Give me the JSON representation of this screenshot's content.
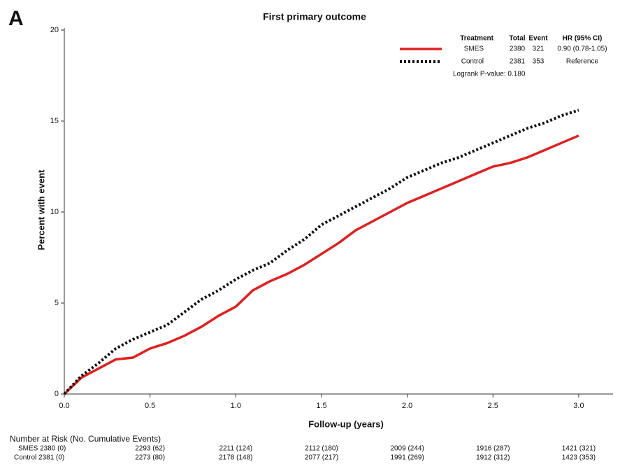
{
  "chart_data": {
    "type": "line",
    "panel_label": "A",
    "title": "First primary outcome",
    "x_label": "Follow-up (years)",
    "y_label": "Percent with event",
    "x": [
      0,
      0.1,
      0.2,
      0.3,
      0.4,
      0.5,
      0.6,
      0.7,
      0.8,
      0.9,
      1.0,
      1.1,
      1.2,
      1.3,
      1.4,
      1.5,
      1.6,
      1.7,
      1.8,
      1.9,
      2.0,
      2.1,
      2.2,
      2.3,
      2.4,
      2.5,
      2.6,
      2.7,
      2.8,
      2.9,
      3.0
    ],
    "series": [
      {
        "name": "SMES",
        "color": "#e02020",
        "dashed": false,
        "values": [
          0,
          0.9,
          1.4,
          1.9,
          2.0,
          2.5,
          2.8,
          3.2,
          3.7,
          4.3,
          4.8,
          5.7,
          6.2,
          6.6,
          7.1,
          7.7,
          8.3,
          9.0,
          9.5,
          10.0,
          10.5,
          10.9,
          11.3,
          11.7,
          12.1,
          12.5,
          12.7,
          13.0,
          13.4,
          13.8,
          14.2
        ]
      },
      {
        "name": "Control",
        "color": "#111111",
        "dashed": true,
        "values": [
          0,
          1.0,
          1.7,
          2.5,
          3.0,
          3.4,
          3.8,
          4.5,
          5.2,
          5.7,
          6.3,
          6.8,
          7.2,
          7.9,
          8.5,
          9.3,
          9.8,
          10.3,
          10.8,
          11.3,
          11.9,
          12.3,
          12.7,
          13.0,
          13.4,
          13.8,
          14.2,
          14.6,
          14.9,
          15.3,
          15.6
        ]
      }
    ],
    "xlim": [
      0,
      3.2
    ],
    "xticks": [
      {
        "value": 0,
        "label": "0.0"
      },
      0.5,
      {
        "value": 1,
        "label": "1.0"
      },
      1.5,
      {
        "value": 2,
        "label": "2.0"
      },
      2.5,
      {
        "value": 3,
        "label": "3.0"
      }
    ],
    "ylim": [
      0,
      20
    ],
    "yticks": [
      0,
      5,
      10,
      15,
      20
    ],
    "legend_table": {
      "header": [
        "Treatment",
        "Total",
        "Event",
        "HR (95% CI)"
      ],
      "rows": [
        [
          "SMES",
          "2380",
          "321",
          "0.90 (0.78-1.05)"
        ],
        [
          "Control",
          "2381",
          "353",
          "Reference"
        ]
      ],
      "note": "Logrank P-value: 0.180"
    },
    "risk_table": {
      "title": "Number at Risk (No. Cumulative Events)",
      "rows": [
        [
          "SMES 2380 (0)",
          "2293 (62)",
          "2211 (124)",
          "2112 (180)",
          "2009 (244)",
          "1916 (287)",
          "1421 (321)"
        ],
        [
          "Control 2381 (0)",
          "2273 (80)",
          "2178 (148)",
          "2077 (217)",
          "1991 (269)",
          "1912 (312)",
          "1423 (353)"
        ]
      ]
    }
  }
}
